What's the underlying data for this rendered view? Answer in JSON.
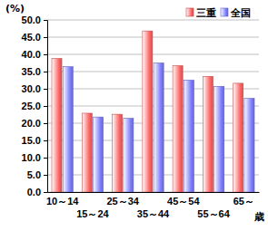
{
  "chart_data": {
    "type": "bar",
    "y_label": "(%)",
    "x_label": "歳",
    "categories": [
      "10～14",
      "15～24",
      "25～34",
      "35～44",
      "45～54",
      "55～64",
      "65～"
    ],
    "series": [
      {
        "name": "三重",
        "color": "#ff6666",
        "values": [
          38.8,
          22.9,
          22.6,
          46.8,
          36.7,
          33.6,
          31.6
        ]
      },
      {
        "name": "全国",
        "color": "#7f7fff",
        "values": [
          36.4,
          21.8,
          21.4,
          37.5,
          32.5,
          30.7,
          27.2
        ]
      }
    ],
    "ylim": [
      0,
      50
    ],
    "yticks": [
      {
        "value": 0,
        "label": "0.0"
      },
      {
        "value": 5,
        "label": "5.0"
      },
      {
        "value": 10,
        "label": "10.0"
      },
      {
        "value": 15,
        "label": "15.0"
      },
      {
        "value": 20,
        "label": "20.0"
      },
      {
        "value": 25,
        "label": "25.0"
      },
      {
        "value": 30,
        "label": "30.0"
      },
      {
        "value": 35,
        "label": "35.0"
      },
      {
        "value": 40,
        "label": "40.0"
      },
      {
        "value": 45,
        "label": "45.0"
      },
      {
        "value": 50,
        "label": "50.0"
      }
    ],
    "grid": true,
    "legend": "top-right"
  }
}
